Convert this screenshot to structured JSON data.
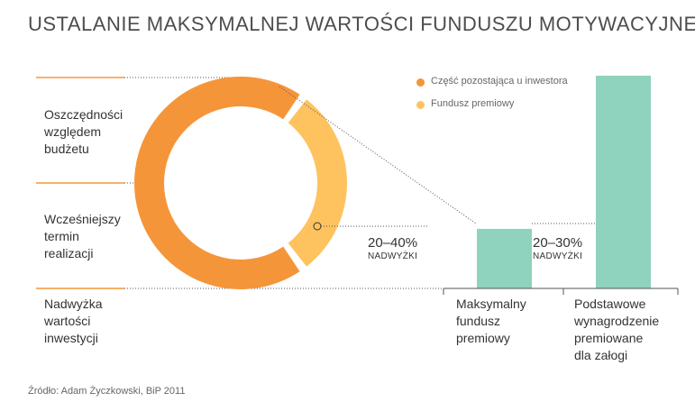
{
  "title": "USTALANIE MAKSYMALNEJ WARTOŚCI FUNDUSZU MOTYWACYJNEGO",
  "left_labels": [
    {
      "lines": [
        "Oszczędności",
        "względem",
        "budżetu"
      ]
    },
    {
      "lines": [
        "Wcześniejszy",
        "termin",
        "realizacji"
      ]
    },
    {
      "lines": [
        "Nadwyżka",
        "wartości",
        "inwestycji"
      ]
    }
  ],
  "legend": [
    {
      "label": "Część pozostająca u inwestora",
      "color": "#f5953a"
    },
    {
      "label": "Fundusz premiowy",
      "color": "#fec35f"
    }
  ],
  "colors": {
    "orange": "#f5953a",
    "yellow": "#fec35f",
    "teal": "#8fd2bd",
    "rule": "#f5953a",
    "dotted": "#555555"
  },
  "chart_data": [
    {
      "type": "pie",
      "variant": "donut",
      "title": "",
      "slices": [
        {
          "name": "Część pozostająca u inwestora",
          "value": 70,
          "color": "#f5953a"
        },
        {
          "name": "Fundusz premiowy",
          "value": 30,
          "color": "#fec35f"
        }
      ]
    },
    {
      "type": "bar",
      "title": "",
      "categories": [
        "Maksymalny fundusz premiowy",
        "Podstawowe wynagrodzenie premiowane dla załogi"
      ],
      "values": [
        28,
        100
      ],
      "colors": [
        "#8fd2bd",
        "#8fd2bd"
      ]
    }
  ],
  "annotations": {
    "pie_pct": "20–40%",
    "pie_caption": "NADWYŻKI",
    "bar_pct": "20–30%",
    "bar_caption": "NADWYŻKI"
  },
  "bar_labels": [
    {
      "lines": [
        "Maksymalny",
        "fundusz",
        "premiowy"
      ]
    },
    {
      "lines": [
        "Podstawowe",
        "wynagrodzenie",
        "premiowane",
        "dla załogi"
      ]
    }
  ],
  "source": "Źródło: Adam Życzkowski, BiP 2011"
}
